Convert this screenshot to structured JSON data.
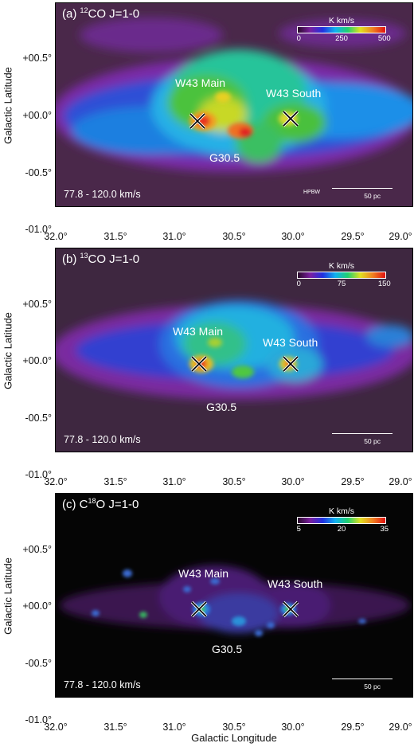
{
  "figure": {
    "x_axis_label": "Galactic Longitude",
    "y_axis_label": "Galactic Latitude",
    "x_ticks": [
      "32.0°",
      "31.5°",
      "31.0°",
      "30.5°",
      "30.0°",
      "29.5°",
      "29.0°"
    ],
    "y_ticks": [
      "+00.5°",
      "+00.0°",
      "-00.5°",
      "-01.0°"
    ],
    "hpbw_label": "HPBW",
    "scale_bar_label": "50 pc",
    "panels": [
      {
        "label_prefix": "(a) ",
        "iso": "12",
        "label_suffix": "CO J=1-0",
        "velocity_range": "77.8 - 120.0 km/s",
        "colorbar_unit": "K km/s",
        "colorbar_ticks": [
          "0",
          "250",
          "500"
        ],
        "show_hpbw": true,
        "sources": [
          "W43 Main",
          "W43 South",
          "G30.5"
        ],
        "background": "#4a284a"
      },
      {
        "label_prefix": "(b) ",
        "iso": "13",
        "label_suffix": "CO J=1-0",
        "velocity_range": "77.8 - 120.0 km/s",
        "colorbar_unit": "K km/s",
        "colorbar_ticks": [
          "0",
          "75",
          "150"
        ],
        "show_hpbw": false,
        "sources": [
          "W43 Main",
          "W43 South",
          "G30.5"
        ],
        "background": "#3e2740"
      },
      {
        "label_prefix": "(c) C",
        "iso": "18",
        "label_suffix": "O J=1-0",
        "velocity_range": "77.8 - 120.0 km/s",
        "colorbar_unit": "K km/s",
        "colorbar_ticks": [
          "5",
          "20",
          "35"
        ],
        "show_hpbw": false,
        "sources": [
          "W43 Main",
          "W43 South",
          "G30.5"
        ],
        "background": "#050505"
      }
    ]
  }
}
